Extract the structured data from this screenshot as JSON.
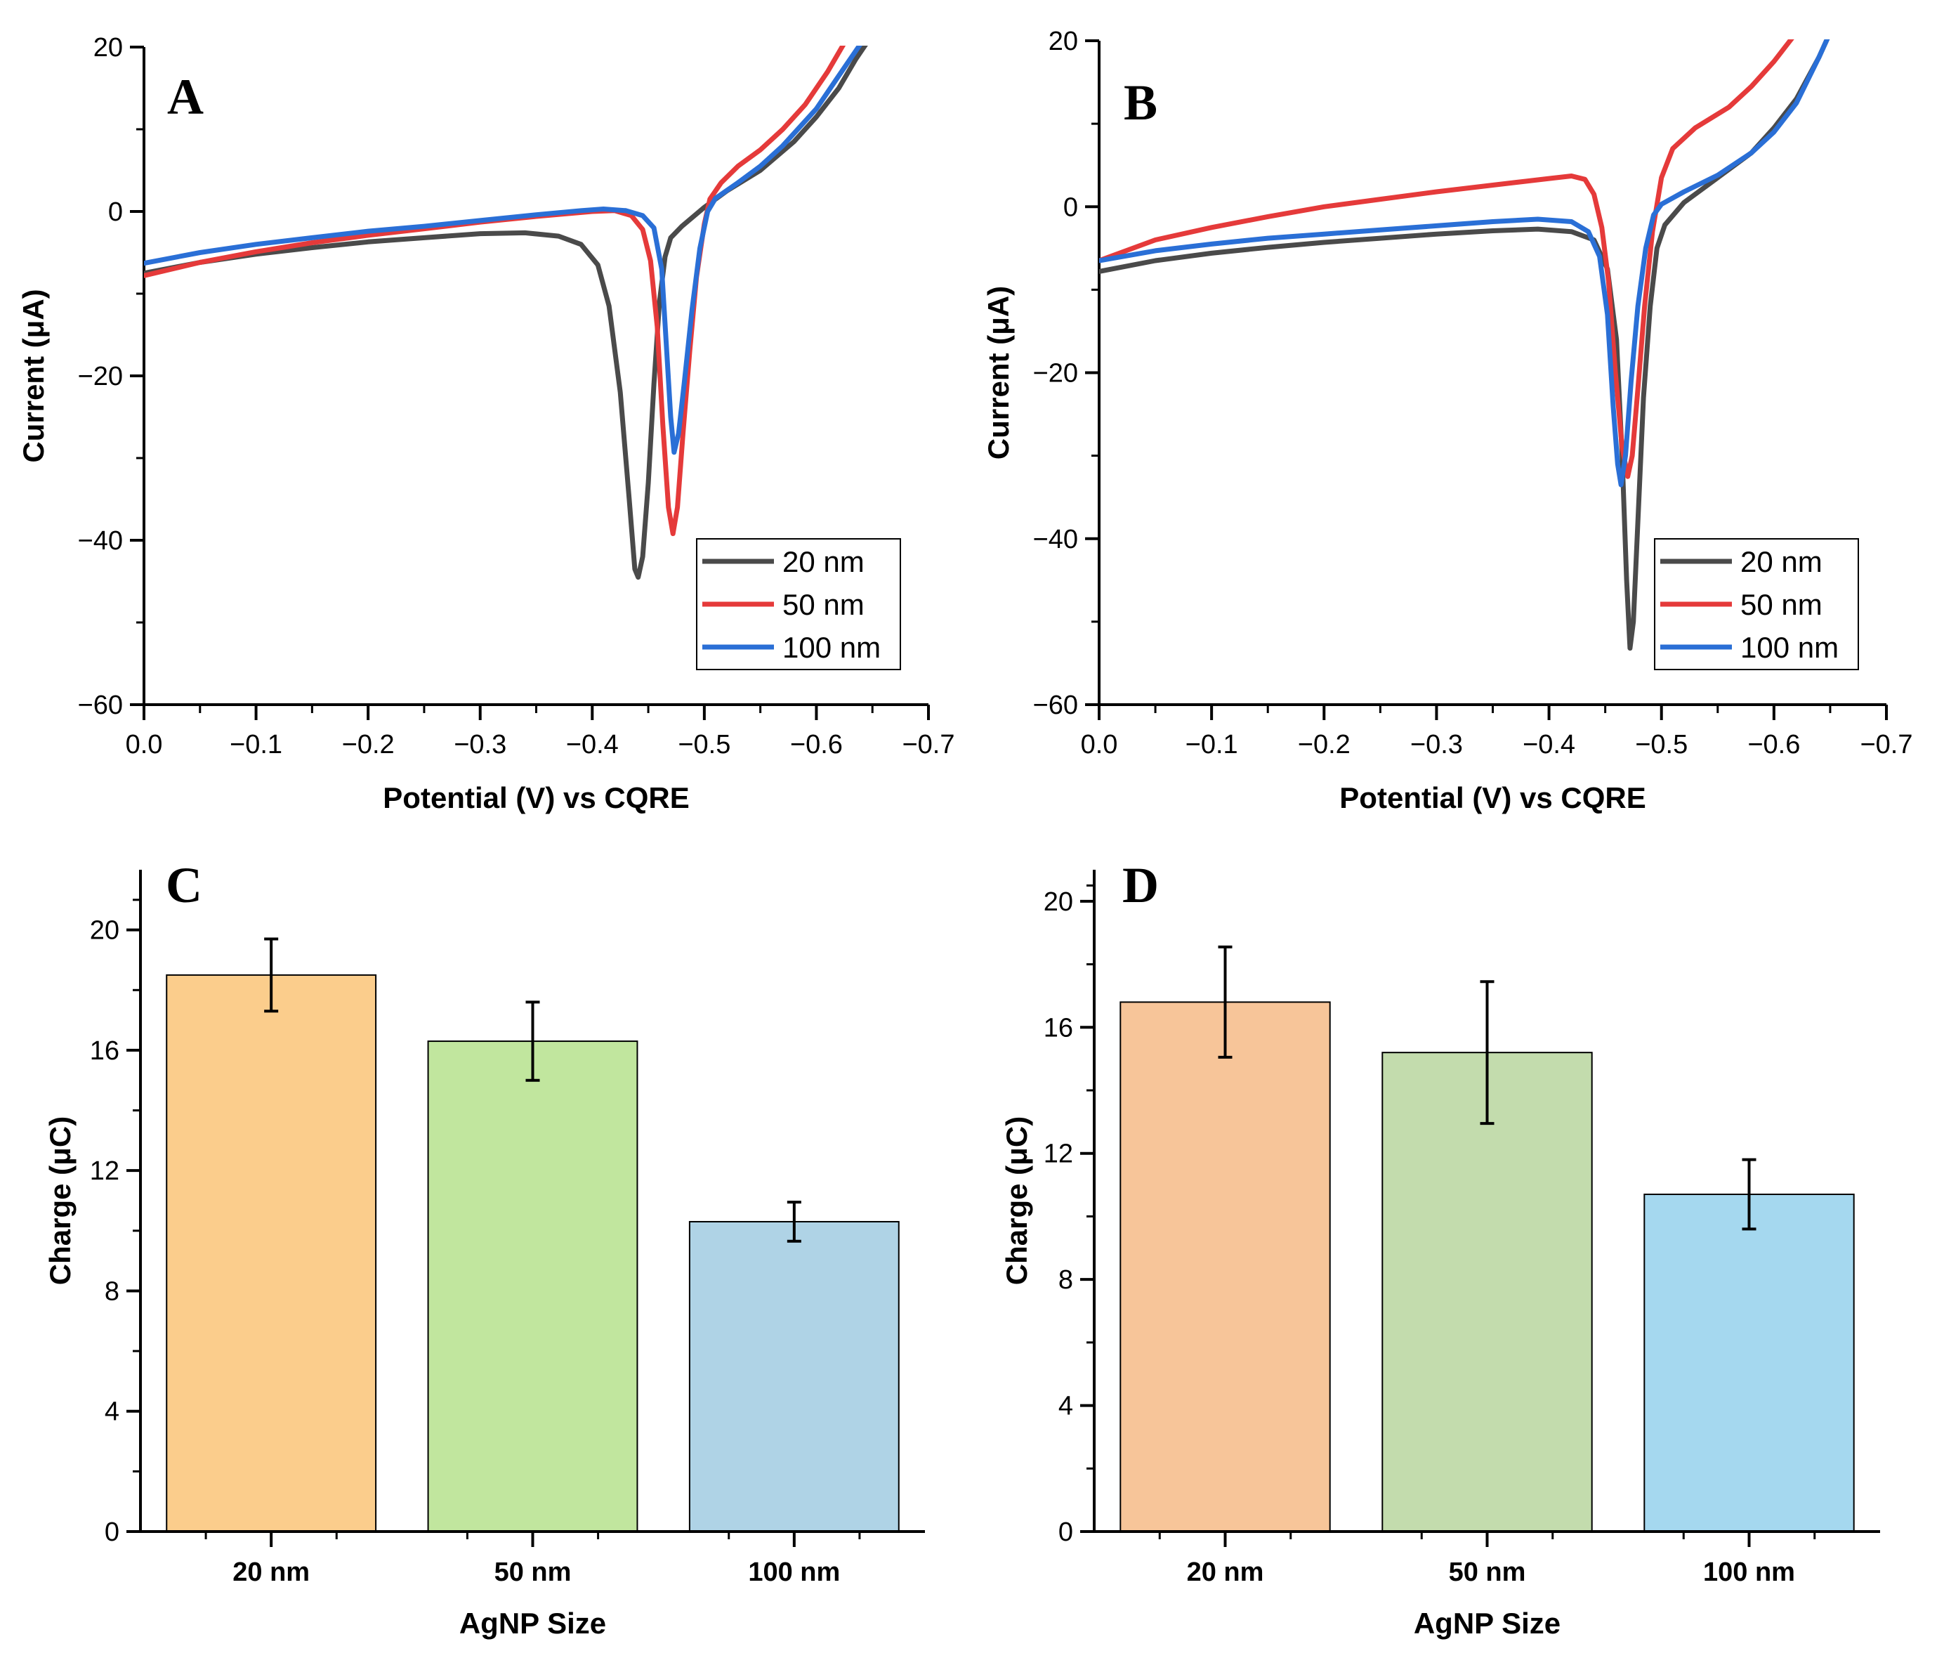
{
  "figure": {
    "charts": [
      "A",
      "B",
      "C",
      "D"
    ]
  },
  "chart_data": [
    {
      "id": "A",
      "type": "line",
      "panel_label": "A",
      "xlabel": "Potential (V) vs CQRE",
      "ylabel": "Current (μA)",
      "xlim": [
        0.0,
        -0.7
      ],
      "ylim": [
        -60,
        20
      ],
      "xticks": [
        0.0,
        -0.1,
        -0.2,
        -0.3,
        -0.4,
        -0.5,
        -0.6,
        -0.7
      ],
      "xtick_labels": [
        "0.0",
        "−0.1",
        "−0.2",
        "−0.3",
        "−0.4",
        "−0.5",
        "−0.6",
        "−0.7"
      ],
      "yticks": [
        -60,
        -40,
        -20,
        0,
        20
      ],
      "ytick_labels": [
        "−60",
        "−40",
        "−20",
        "0",
        "20"
      ],
      "legend_position": "lower-right",
      "series": [
        {
          "name": "20 nm",
          "color": "#4a4a4a",
          "points": [
            [
              0.0,
              -7.5
            ],
            [
              -0.05,
              -6.2
            ],
            [
              -0.1,
              -5.2
            ],
            [
              -0.15,
              -4.4
            ],
            [
              -0.2,
              -3.7
            ],
            [
              -0.25,
              -3.2
            ],
            [
              -0.3,
              -2.7
            ],
            [
              -0.34,
              -2.6
            ],
            [
              -0.37,
              -3.0
            ],
            [
              -0.39,
              -4.0
            ],
            [
              -0.405,
              -6.5
            ],
            [
              -0.415,
              -11.5
            ],
            [
              -0.425,
              -22
            ],
            [
              -0.433,
              -35
            ],
            [
              -0.438,
              -43.5
            ],
            [
              -0.441,
              -44.5
            ],
            [
              -0.445,
              -42
            ],
            [
              -0.45,
              -33
            ],
            [
              -0.455,
              -21
            ],
            [
              -0.46,
              -11
            ],
            [
              -0.465,
              -5.5
            ],
            [
              -0.47,
              -3.2
            ],
            [
              -0.48,
              -1.8
            ],
            [
              -0.5,
              0.5
            ],
            [
              -0.52,
              2.5
            ],
            [
              -0.55,
              5.0
            ],
            [
              -0.58,
              8.5
            ],
            [
              -0.6,
              11.5
            ],
            [
              -0.62,
              15.0
            ],
            [
              -0.635,
              18.5
            ],
            [
              -0.645,
              20.5
            ]
          ]
        },
        {
          "name": "50 nm",
          "color": "#e53a3a",
          "points": [
            [
              0.0,
              -7.8
            ],
            [
              -0.05,
              -6.2
            ],
            [
              -0.1,
              -4.9
            ],
            [
              -0.15,
              -3.8
            ],
            [
              -0.2,
              -2.9
            ],
            [
              -0.25,
              -2.1
            ],
            [
              -0.3,
              -1.3
            ],
            [
              -0.35,
              -0.6
            ],
            [
              -0.4,
              0.0
            ],
            [
              -0.42,
              0.1
            ],
            [
              -0.435,
              -0.5
            ],
            [
              -0.445,
              -2.2
            ],
            [
              -0.452,
              -6
            ],
            [
              -0.458,
              -14
            ],
            [
              -0.463,
              -26
            ],
            [
              -0.468,
              -36
            ],
            [
              -0.472,
              -39.2
            ],
            [
              -0.476,
              -36
            ],
            [
              -0.481,
              -27
            ],
            [
              -0.487,
              -17
            ],
            [
              -0.493,
              -8
            ],
            [
              -0.5,
              -1.5
            ],
            [
              -0.505,
              1.5
            ],
            [
              -0.515,
              3.5
            ],
            [
              -0.53,
              5.5
            ],
            [
              -0.55,
              7.5
            ],
            [
              -0.57,
              10.0
            ],
            [
              -0.59,
              13.0
            ],
            [
              -0.61,
              17.0
            ],
            [
              -0.625,
              20.5
            ]
          ]
        },
        {
          "name": "100 nm",
          "color": "#2a6fd6",
          "points": [
            [
              0.0,
              -6.3
            ],
            [
              -0.05,
              -5.0
            ],
            [
              -0.1,
              -4.0
            ],
            [
              -0.15,
              -3.2
            ],
            [
              -0.2,
              -2.4
            ],
            [
              -0.25,
              -1.8
            ],
            [
              -0.3,
              -1.1
            ],
            [
              -0.35,
              -0.4
            ],
            [
              -0.39,
              0.1
            ],
            [
              -0.41,
              0.3
            ],
            [
              -0.43,
              0.1
            ],
            [
              -0.445,
              -0.5
            ],
            [
              -0.455,
              -2
            ],
            [
              -0.462,
              -7
            ],
            [
              -0.466,
              -16
            ],
            [
              -0.47,
              -25
            ],
            [
              -0.473,
              -29.3
            ],
            [
              -0.477,
              -27
            ],
            [
              -0.482,
              -21
            ],
            [
              -0.489,
              -12
            ],
            [
              -0.496,
              -4.5
            ],
            [
              -0.503,
              0.0
            ],
            [
              -0.51,
              1.6
            ],
            [
              -0.53,
              3.5
            ],
            [
              -0.55,
              5.5
            ],
            [
              -0.57,
              8.0
            ],
            [
              -0.6,
              12.5
            ],
            [
              -0.62,
              16.5
            ],
            [
              -0.64,
              20.5
            ]
          ]
        }
      ]
    },
    {
      "id": "B",
      "type": "line",
      "panel_label": "B",
      "xlabel": "Potential (V) vs CQRE",
      "ylabel": "Current (μA)",
      "xlim": [
        0.0,
        -0.7
      ],
      "ylim": [
        -60,
        20
      ],
      "xticks": [
        0.0,
        -0.1,
        -0.2,
        -0.3,
        -0.4,
        -0.5,
        -0.6,
        -0.7
      ],
      "xtick_labels": [
        "0.0",
        "−0.1",
        "−0.2",
        "−0.3",
        "−0.4",
        "−0.5",
        "−0.6",
        "−0.7"
      ],
      "yticks": [
        -60,
        -40,
        -20,
        0,
        20
      ],
      "ytick_labels": [
        "−60",
        "−40",
        "−20",
        "0",
        "20"
      ],
      "legend_position": "lower-right",
      "series": [
        {
          "name": "20 nm",
          "color": "#4a4a4a",
          "points": [
            [
              0.0,
              -7.8
            ],
            [
              -0.05,
              -6.5
            ],
            [
              -0.1,
              -5.6
            ],
            [
              -0.15,
              -4.9
            ],
            [
              -0.2,
              -4.3
            ],
            [
              -0.25,
              -3.8
            ],
            [
              -0.3,
              -3.3
            ],
            [
              -0.35,
              -2.9
            ],
            [
              -0.39,
              -2.7
            ],
            [
              -0.42,
              -3.0
            ],
            [
              -0.44,
              -4.0
            ],
            [
              -0.452,
              -7.5
            ],
            [
              -0.46,
              -16
            ],
            [
              -0.465,
              -30
            ],
            [
              -0.469,
              -45
            ],
            [
              -0.472,
              -53.2
            ],
            [
              -0.475,
              -50
            ],
            [
              -0.479,
              -38
            ],
            [
              -0.484,
              -23
            ],
            [
              -0.49,
              -12
            ],
            [
              -0.496,
              -5
            ],
            [
              -0.503,
              -2.2
            ],
            [
              -0.52,
              0.5
            ],
            [
              -0.55,
              3.5
            ],
            [
              -0.58,
              6.5
            ],
            [
              -0.6,
              9.5
            ],
            [
              -0.62,
              13.0
            ],
            [
              -0.64,
              18.0
            ],
            [
              -0.65,
              21.0
            ]
          ]
        },
        {
          "name": "50 nm",
          "color": "#e53a3a",
          "points": [
            [
              0.0,
              -6.5
            ],
            [
              -0.05,
              -4.0
            ],
            [
              -0.1,
              -2.5
            ],
            [
              -0.15,
              -1.2
            ],
            [
              -0.2,
              0.0
            ],
            [
              -0.25,
              0.9
            ],
            [
              -0.3,
              1.8
            ],
            [
              -0.35,
              2.6
            ],
            [
              -0.4,
              3.4
            ],
            [
              -0.42,
              3.7
            ],
            [
              -0.432,
              3.3
            ],
            [
              -0.44,
              1.5
            ],
            [
              -0.447,
              -2.5
            ],
            [
              -0.453,
              -9
            ],
            [
              -0.459,
              -20
            ],
            [
              -0.465,
              -29
            ],
            [
              -0.47,
              -32.5
            ],
            [
              -0.474,
              -30
            ],
            [
              -0.479,
              -22
            ],
            [
              -0.485,
              -12
            ],
            [
              -0.492,
              -3
            ],
            [
              -0.5,
              3.5
            ],
            [
              -0.51,
              7.0
            ],
            [
              -0.53,
              9.5
            ],
            [
              -0.56,
              12.0
            ],
            [
              -0.58,
              14.5
            ],
            [
              -0.6,
              17.5
            ],
            [
              -0.62,
              21.0
            ]
          ]
        },
        {
          "name": "100 nm",
          "color": "#2a6fd6",
          "points": [
            [
              0.0,
              -6.5
            ],
            [
              -0.05,
              -5.3
            ],
            [
              -0.1,
              -4.5
            ],
            [
              -0.15,
              -3.8
            ],
            [
              -0.2,
              -3.3
            ],
            [
              -0.25,
              -2.8
            ],
            [
              -0.3,
              -2.3
            ],
            [
              -0.35,
              -1.8
            ],
            [
              -0.39,
              -1.5
            ],
            [
              -0.42,
              -1.8
            ],
            [
              -0.435,
              -3.0
            ],
            [
              -0.445,
              -6
            ],
            [
              -0.452,
              -13
            ],
            [
              -0.457,
              -24
            ],
            [
              -0.461,
              -31
            ],
            [
              -0.464,
              -33.5
            ],
            [
              -0.468,
              -30
            ],
            [
              -0.473,
              -21
            ],
            [
              -0.479,
              -12
            ],
            [
              -0.486,
              -5
            ],
            [
              -0.493,
              -1.0
            ],
            [
              -0.5,
              0.3
            ],
            [
              -0.52,
              1.8
            ],
            [
              -0.55,
              3.8
            ],
            [
              -0.58,
              6.5
            ],
            [
              -0.6,
              9.0
            ],
            [
              -0.62,
              12.5
            ],
            [
              -0.64,
              18.0
            ],
            [
              -0.65,
              21.0
            ]
          ]
        }
      ]
    },
    {
      "id": "C",
      "type": "bar",
      "panel_label": "C",
      "xlabel": "AgNP Size",
      "ylabel": "Charge (μC)",
      "categories": [
        "20 nm",
        "50 nm",
        "100 nm"
      ],
      "values": [
        18.5,
        16.3,
        10.3
      ],
      "errors": [
        1.2,
        1.3,
        0.65
      ],
      "colors": [
        "#fbcd8c",
        "#c1e69e",
        "#afd3e6"
      ],
      "ylim": [
        0,
        22
      ],
      "yticks": [
        0,
        4,
        8,
        12,
        16,
        20
      ],
      "ytick_labels": [
        "0",
        "4",
        "8",
        "12",
        "16",
        "20"
      ]
    },
    {
      "id": "D",
      "type": "bar",
      "panel_label": "D",
      "xlabel": "AgNP Size",
      "ylabel": "Charge (μC)",
      "categories": [
        "20 nm",
        "50 nm",
        "100 nm"
      ],
      "values": [
        16.8,
        15.2,
        10.7
      ],
      "errors": [
        1.75,
        2.25,
        1.1
      ],
      "colors": [
        "#f7c599",
        "#c3dcad",
        "#a5d8ef"
      ],
      "ylim": [
        0,
        21
      ],
      "yticks": [
        0,
        4,
        8,
        12,
        16,
        20
      ],
      "ytick_labels": [
        "0",
        "4",
        "8",
        "12",
        "16",
        "20"
      ]
    }
  ]
}
